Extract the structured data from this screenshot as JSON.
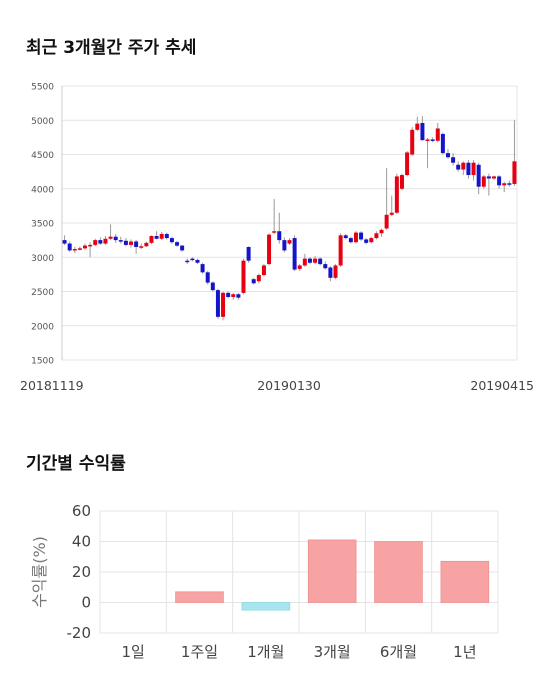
{
  "colors": {
    "up": "#e60012",
    "down": "#1414c8",
    "positive_bar": "#f8a3a3",
    "negative_bar": "#a8e6ef",
    "grid": "#e4e4e4"
  },
  "chart_data": [
    {
      "type": "candlestick",
      "title": "최근 3개월간 주가 추세",
      "ylim": [
        1500,
        5500
      ],
      "yticks": [
        1500,
        2000,
        2500,
        3000,
        3500,
        4000,
        4500,
        5000,
        5500
      ],
      "xtick_labels": [
        "20181119",
        "20190130",
        "20190415"
      ],
      "grid": true,
      "ohlc": [
        [
          3250,
          3320,
          3180,
          3200
        ],
        [
          3200,
          3230,
          3080,
          3100
        ],
        [
          3100,
          3150,
          3060,
          3120
        ],
        [
          3120,
          3160,
          3100,
          3130
        ],
        [
          3130,
          3200,
          3110,
          3170
        ],
        [
          3170,
          3220,
          3000,
          3180
        ],
        [
          3180,
          3270,
          3160,
          3250
        ],
        [
          3250,
          3290,
          3180,
          3200
        ],
        [
          3200,
          3310,
          3180,
          3270
        ],
        [
          3270,
          3480,
          3250,
          3300
        ],
        [
          3300,
          3340,
          3210,
          3250
        ],
        [
          3250,
          3300,
          3200,
          3240
        ],
        [
          3240,
          3280,
          3160,
          3180
        ],
        [
          3180,
          3260,
          3140,
          3230
        ],
        [
          3230,
          3250,
          3050,
          3150
        ],
        [
          3150,
          3200,
          3120,
          3160
        ],
        [
          3160,
          3230,
          3150,
          3210
        ],
        [
          3210,
          3320,
          3190,
          3310
        ],
        [
          3310,
          3380,
          3260,
          3270
        ],
        [
          3270,
          3370,
          3250,
          3340
        ],
        [
          3340,
          3360,
          3260,
          3280
        ],
        [
          3280,
          3300,
          3200,
          3220
        ],
        [
          3220,
          3240,
          3150,
          3170
        ],
        [
          3170,
          3180,
          3080,
          3100
        ],
        [
          2950,
          2980,
          2900,
          2930
        ],
        [
          2980,
          3000,
          2940,
          2960
        ],
        [
          2960,
          2980,
          2900,
          2920
        ],
        [
          2900,
          2920,
          2760,
          2780
        ],
        [
          2780,
          2800,
          2600,
          2630
        ],
        [
          2630,
          2650,
          2500,
          2520
        ],
        [
          2520,
          2540,
          2100,
          2130
        ],
        [
          2130,
          2500,
          2080,
          2480
        ],
        [
          2480,
          2500,
          2400,
          2420
        ],
        [
          2420,
          2480,
          2380,
          2460
        ],
        [
          2460,
          2480,
          2380,
          2410
        ],
        [
          2480,
          2980,
          2460,
          2950
        ],
        [
          3150,
          3160,
          2920,
          2950
        ],
        [
          2680,
          2700,
          2600,
          2620
        ],
        [
          2650,
          2760,
          2620,
          2740
        ],
        [
          2740,
          2900,
          2720,
          2880
        ],
        [
          2900,
          3350,
          2880,
          3330
        ],
        [
          3360,
          3850,
          3340,
          3380
        ],
        [
          3380,
          3650,
          3200,
          3250
        ],
        [
          3250,
          3290,
          3070,
          3100
        ],
        [
          3200,
          3280,
          3180,
          3250
        ],
        [
          3280,
          3320,
          2800,
          2820
        ],
        [
          2830,
          2900,
          2800,
          2880
        ],
        [
          2880,
          3050,
          2860,
          2980
        ],
        [
          2980,
          3000,
          2900,
          2920
        ],
        [
          2920,
          3020,
          2900,
          2980
        ],
        [
          2980,
          3000,
          2880,
          2900
        ],
        [
          2900,
          2940,
          2820,
          2840
        ],
        [
          2850,
          2870,
          2650,
          2700
        ],
        [
          2700,
          2900,
          2680,
          2880
        ],
        [
          2880,
          3350,
          2860,
          3320
        ],
        [
          3320,
          3340,
          3260,
          3280
        ],
        [
          3280,
          3300,
          3200,
          3220
        ],
        [
          3220,
          3380,
          3200,
          3360
        ],
        [
          3360,
          3380,
          3240,
          3260
        ],
        [
          3260,
          3280,
          3190,
          3210
        ],
        [
          3220,
          3300,
          3200,
          3280
        ],
        [
          3280,
          3380,
          3260,
          3350
        ],
        [
          3350,
          3420,
          3300,
          3400
        ],
        [
          3420,
          4300,
          3400,
          3620
        ],
        [
          3620,
          3900,
          3600,
          3650
        ],
        [
          3650,
          4220,
          3630,
          4180
        ],
        [
          4000,
          4220,
          3980,
          4200
        ],
        [
          4200,
          4550,
          4180,
          4530
        ],
        [
          4500,
          4900,
          4480,
          4860
        ],
        [
          4860,
          5050,
          4840,
          4950
        ],
        [
          4960,
          5060,
          4700,
          4710
        ],
        [
          4710,
          4740,
          4300,
          4720
        ],
        [
          4720,
          4750,
          4680,
          4700
        ],
        [
          4700,
          4960,
          4680,
          4880
        ],
        [
          4800,
          4820,
          4500,
          4520
        ],
        [
          4520,
          4580,
          4440,
          4460
        ],
        [
          4460,
          4520,
          4340,
          4380
        ],
        [
          4350,
          4400,
          4250,
          4280
        ],
        [
          4280,
          4400,
          4200,
          4380
        ],
        [
          4380,
          4420,
          4150,
          4200
        ],
        [
          4200,
          4420,
          4120,
          4380
        ],
        [
          4350,
          4380,
          3920,
          4030
        ],
        [
          4030,
          4200,
          4000,
          4180
        ],
        [
          4180,
          4220,
          3900,
          4150
        ],
        [
          4150,
          4190,
          4130,
          4180
        ],
        [
          4180,
          4200,
          4000,
          4050
        ],
        [
          4050,
          4100,
          3950,
          4080
        ],
        [
          4080,
          4120,
          4030,
          4070
        ],
        [
          4070,
          5000,
          4040,
          4400
        ]
      ]
    },
    {
      "type": "bar",
      "title": "기간별 수익률",
      "categories": [
        "1일",
        "1주일",
        "1개월",
        "3개월",
        "6개월",
        "1년"
      ],
      "values": [
        0,
        7,
        -5,
        41,
        40,
        27
      ],
      "ylabel": "수익률(%)",
      "ylim": [
        -20,
        60
      ],
      "yticks": [
        -20,
        0,
        20,
        40,
        60
      ],
      "grid": true
    }
  ]
}
